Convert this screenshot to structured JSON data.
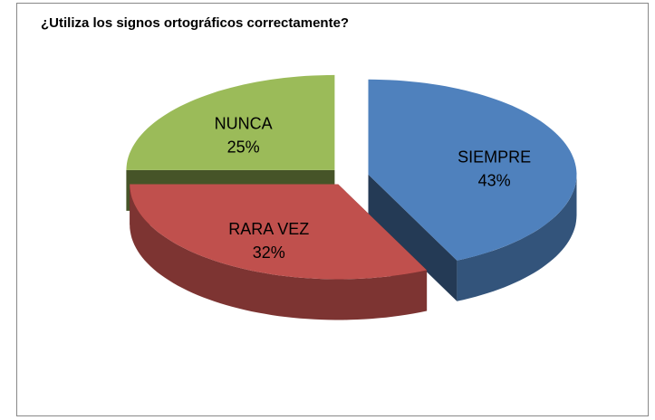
{
  "chart_data": {
    "type": "pie",
    "title": "¿Utiliza los signos ortográficos correctamente?",
    "categories": [
      "SIEMPRE",
      "RARA VEZ",
      "NUNCA"
    ],
    "values": [
      43,
      32,
      25
    ],
    "value_labels": [
      "43%",
      "32%",
      "25%"
    ],
    "colors": [
      "#4f81bd",
      "#c0504d",
      "#9bbb59"
    ]
  }
}
